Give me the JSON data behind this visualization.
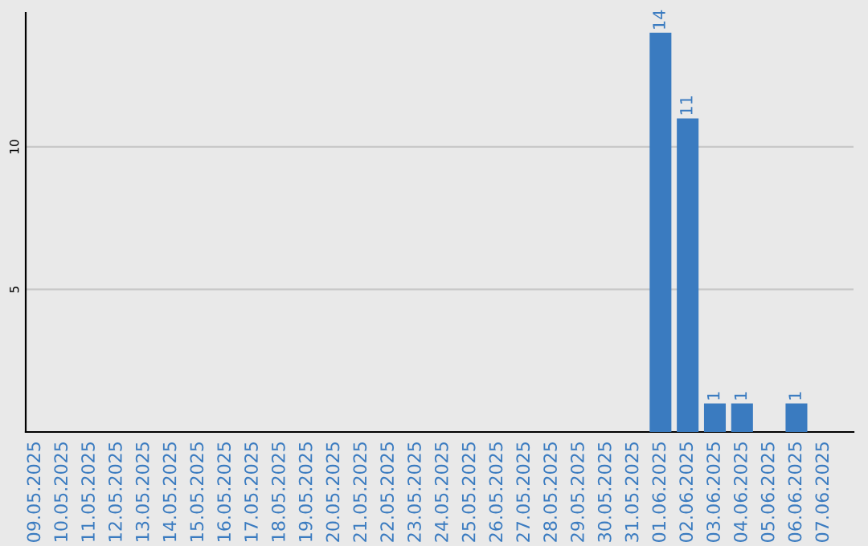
{
  "chart_data": {
    "type": "bar",
    "categories": [
      "09.05.2025",
      "10.05.2025",
      "11.05.2025",
      "12.05.2025",
      "13.05.2025",
      "14.05.2025",
      "15.05.2025",
      "16.05.2025",
      "17.05.2025",
      "18.05.2025",
      "19.05.2025",
      "20.05.2025",
      "21.05.2025",
      "22.05.2025",
      "23.05.2025",
      "24.05.2025",
      "25.05.2025",
      "26.05.2025",
      "27.05.2025",
      "28.05.2025",
      "29.05.2025",
      "30.05.2025",
      "31.05.2025",
      "01.06.2025",
      "02.06.2025",
      "03.06.2025",
      "04.06.2025",
      "05.06.2025",
      "06.06.2025",
      "07.06.2025"
    ],
    "values": [
      0,
      0,
      0,
      0,
      0,
      0,
      0,
      0,
      0,
      0,
      0,
      0,
      0,
      0,
      0,
      0,
      0,
      0,
      0,
      0,
      0,
      0,
      0,
      14,
      11,
      1,
      1,
      0,
      1,
      0
    ],
    "value_labels": [
      null,
      null,
      null,
      null,
      null,
      null,
      null,
      null,
      null,
      null,
      null,
      null,
      null,
      null,
      null,
      null,
      null,
      null,
      null,
      null,
      null,
      null,
      null,
      "14",
      "11",
      "1",
      "1",
      null,
      "1",
      null
    ],
    "color": "#3a7bc0",
    "ylim": [
      0,
      14.7
    ],
    "yticks": [
      5,
      10
    ],
    "grid": "y"
  }
}
